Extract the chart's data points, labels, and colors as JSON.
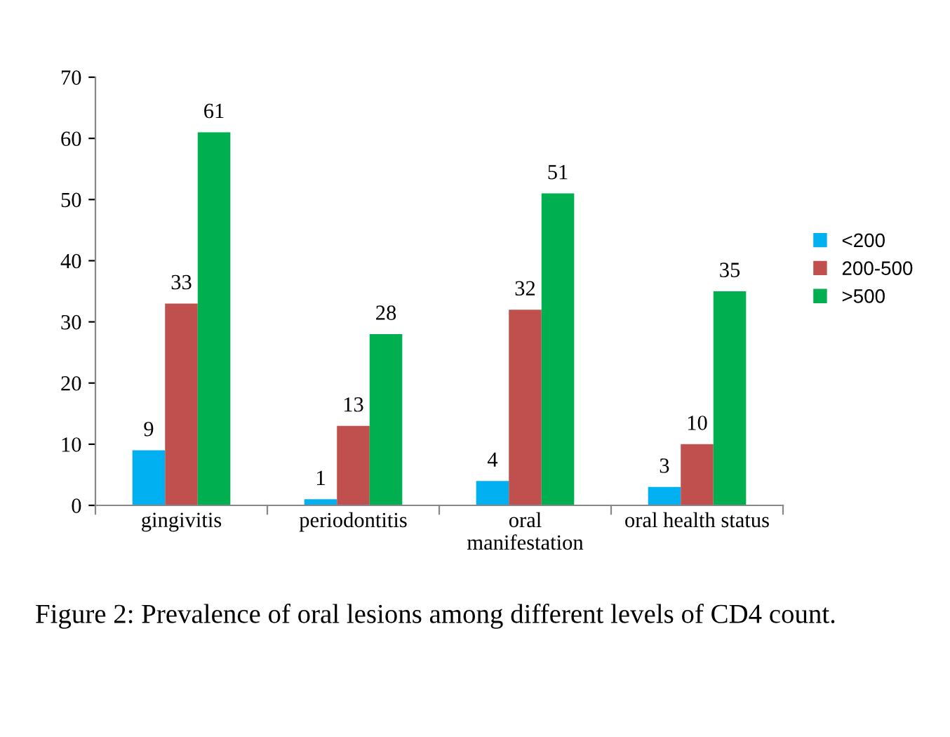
{
  "chart_data": {
    "type": "bar",
    "categories": [
      "gingivitis",
      "periodontitis",
      "oral\nmanifestation",
      "oral health status"
    ],
    "series": [
      {
        "name": "<200",
        "color": "#00b0f0",
        "values": [
          9,
          1,
          4,
          3
        ]
      },
      {
        "name": "200-500",
        "color": "#c0504d",
        "values": [
          33,
          13,
          32,
          10
        ]
      },
      {
        "name": ">500",
        "color": "#00b050",
        "values": [
          61,
          28,
          51,
          35
        ]
      }
    ],
    "ylim": [
      0,
      70
    ],
    "yticks": [
      0,
      10,
      20,
      30,
      40,
      50,
      60,
      70
    ],
    "grid": false,
    "legend": "right",
    "data_labels": true,
    "annotations": [
      "Figure 2: Prevalence of oral lesions among different levels of CD4 count."
    ]
  }
}
